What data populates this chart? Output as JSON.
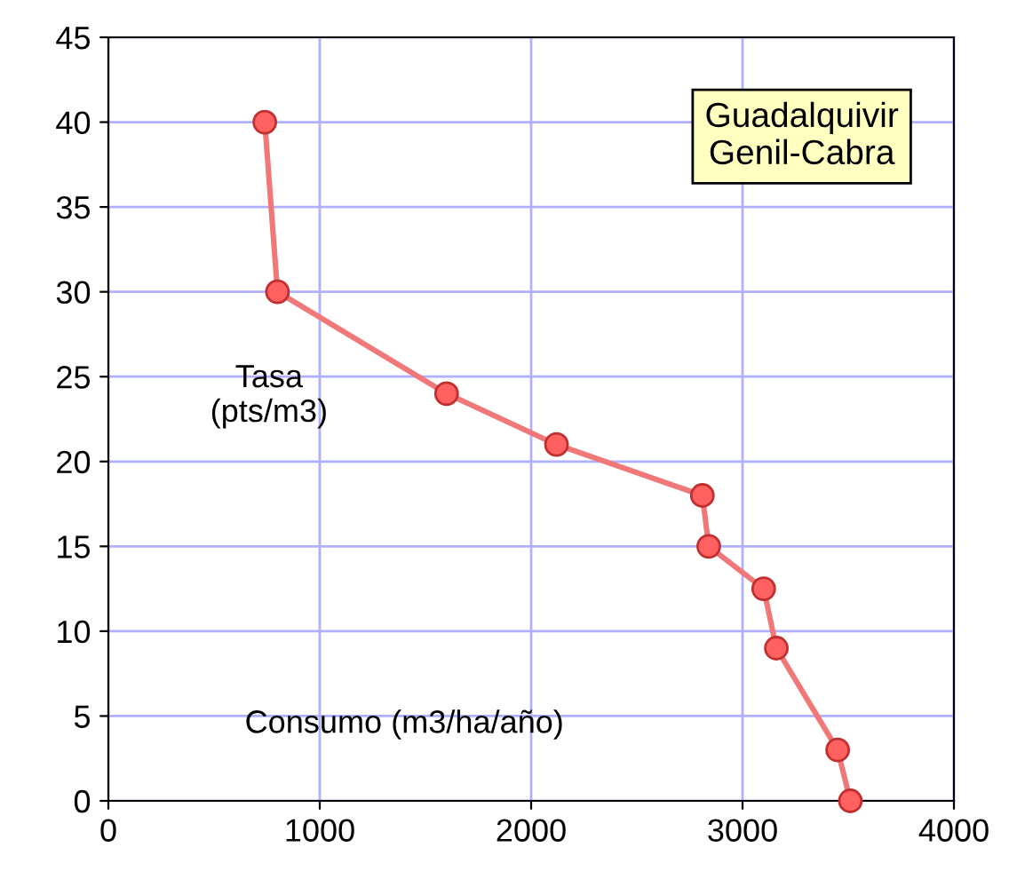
{
  "chart_data": {
    "type": "line",
    "title": "Guadalquivir\nGenil-Cabra",
    "xlabel": "Consumo (m3/ha/año)",
    "ylabel": "Tasa\n(pts/m3)",
    "x": [
      740,
      800,
      1600,
      2120,
      2810,
      2840,
      3100,
      3160,
      3450,
      3510
    ],
    "series": [
      {
        "color": "#f07878",
        "values": [
          40,
          30,
          24,
          21,
          18,
          15,
          12.5,
          9,
          3,
          0
        ]
      }
    ],
    "xlim": [
      0,
      4000
    ],
    "xticks": [
      0,
      1000,
      2000,
      3000,
      4000
    ],
    "ylim": [
      0,
      45
    ],
    "yticks": [
      0,
      5,
      10,
      15,
      20,
      25,
      30,
      35,
      40,
      45
    ],
    "grid": true,
    "marker": "circle",
    "line_style": "solid",
    "legend": false
  }
}
